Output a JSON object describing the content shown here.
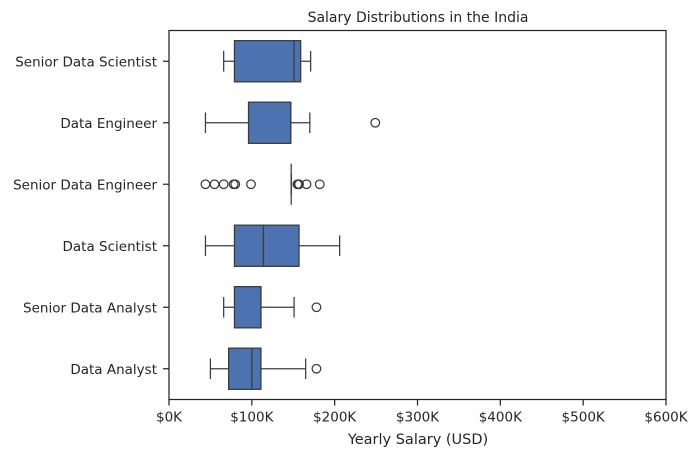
{
  "chart_data": {
    "type": "boxplot",
    "orientation": "horizontal",
    "title": "Salary Distributions in the India",
    "xlabel": "Yearly Salary (USD)",
    "ylabel": "",
    "xlim": [
      0,
      600000
    ],
    "xticks": [
      0,
      100000,
      200000,
      300000,
      400000,
      500000,
      600000
    ],
    "xtick_labels": [
      "$0K",
      "$100K",
      "$200K",
      "$300K",
      "$400K",
      "$500K",
      "$600K"
    ],
    "grid": false,
    "box_color": "#4c72b0",
    "edge_color": "#3b3b3b",
    "categories": [
      "Senior Data Scientist",
      "Data Engineer",
      "Senior Data Engineer",
      "Data Scientist",
      "Senior Data Analyst",
      "Data Analyst"
    ],
    "boxes": [
      {
        "label": "Senior Data Scientist",
        "whisker_low": 66000,
        "q1": 79000,
        "median": 151000,
        "q3": 159000,
        "whisker_high": 171000,
        "outliers": []
      },
      {
        "label": "Data Engineer",
        "whisker_low": 44000,
        "q1": 96000,
        "median": 147000,
        "q3": 147000,
        "whisker_high": 170000,
        "outliers": [
          249000
        ]
      },
      {
        "label": "Senior Data Engineer",
        "whisker_low": 147500,
        "q1": 147500,
        "median": 147500,
        "q3": 147500,
        "whisker_high": 147500,
        "outliers": [
          44000,
          55000,
          66000,
          78000,
          80000,
          99000,
          155000,
          156000,
          157000,
          166000,
          182000
        ]
      },
      {
        "label": "Data Scientist",
        "whisker_low": 44000,
        "q1": 79000,
        "median": 114000,
        "q3": 157000,
        "whisker_high": 206000,
        "outliers": []
      },
      {
        "label": "Senior Data Analyst",
        "whisker_low": 66000,
        "q1": 79000,
        "median": 111000,
        "q3": 111000,
        "whisker_high": 151000,
        "outliers": [
          178000
        ]
      },
      {
        "label": "Data Analyst",
        "whisker_low": 50000,
        "q1": 72000,
        "median": 100000,
        "q3": 111000,
        "whisker_high": 165000,
        "outliers": [
          178000
        ]
      }
    ]
  }
}
